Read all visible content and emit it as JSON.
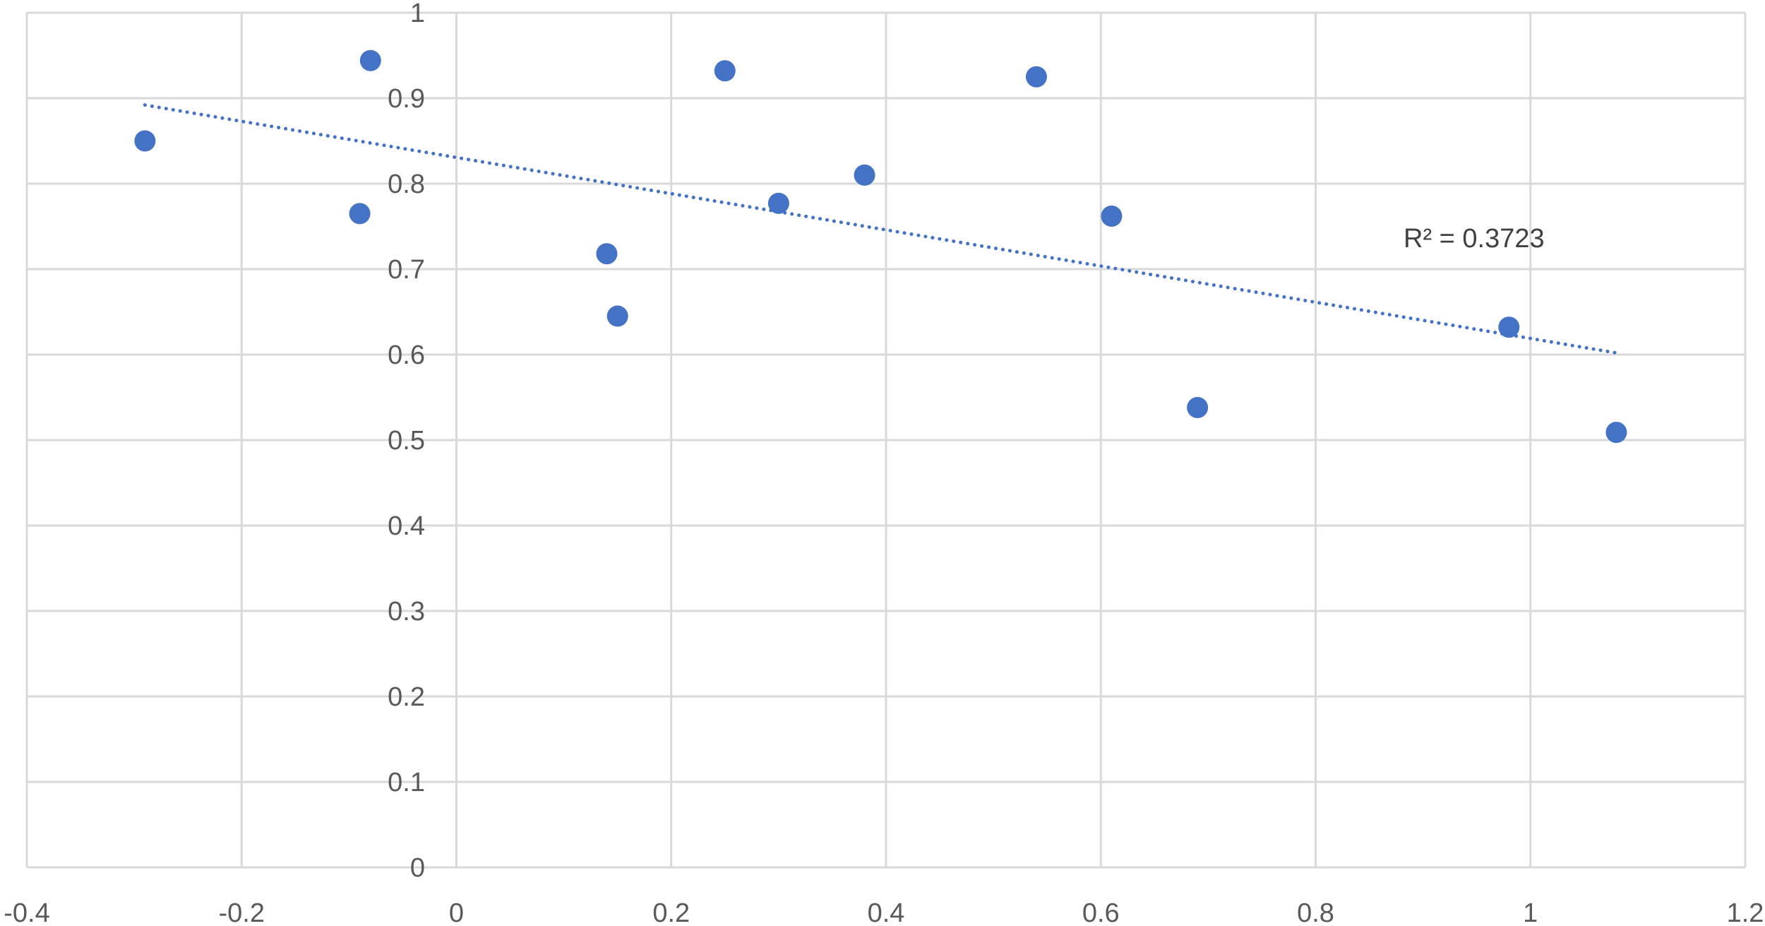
{
  "chart_data": {
    "type": "scatter",
    "title": "",
    "xlabel": "",
    "ylabel": "",
    "xlim": [
      -0.4,
      1.2
    ],
    "ylim": [
      0,
      1
    ],
    "x_ticks": [
      -0.4,
      -0.2,
      0,
      0.2,
      0.4,
      0.6,
      0.8,
      1,
      1.2
    ],
    "x_tick_labels": [
      "-0.4",
      "-0.2",
      "0",
      "0.2",
      "0.4",
      "0.6",
      "0.8",
      "1",
      "1.2"
    ],
    "y_ticks": [
      0,
      0.1,
      0.2,
      0.3,
      0.4,
      0.5,
      0.6,
      0.7,
      0.8,
      0.9,
      1
    ],
    "y_tick_labels": [
      "0",
      "0.1",
      "0.2",
      "0.3",
      "0.4",
      "0.5",
      "0.6",
      "0.7",
      "0.8",
      "0.9",
      "1"
    ],
    "grid": true,
    "legend": "none",
    "series": [
      {
        "color": "#4472C4",
        "points": [
          {
            "x": -0.29,
            "y": 0.85
          },
          {
            "x": -0.09,
            "y": 0.765
          },
          {
            "x": -0.08,
            "y": 0.944
          },
          {
            "x": 0.14,
            "y": 0.718
          },
          {
            "x": 0.15,
            "y": 0.645
          },
          {
            "x": 0.25,
            "y": 0.932
          },
          {
            "x": 0.3,
            "y": 0.777
          },
          {
            "x": 0.38,
            "y": 0.81
          },
          {
            "x": 0.54,
            "y": 0.925
          },
          {
            "x": 0.61,
            "y": 0.762
          },
          {
            "x": 0.69,
            "y": 0.538
          },
          {
            "x": 0.98,
            "y": 0.632
          },
          {
            "x": 1.08,
            "y": 0.509
          }
        ]
      }
    ],
    "trendline": {
      "type": "linear",
      "style": "dotted",
      "color": "#4472C4",
      "x_range": [
        -0.29,
        1.08
      ],
      "slope": -0.2117,
      "intercept": 0.8306,
      "label": "R² = 0.3723"
    }
  }
}
